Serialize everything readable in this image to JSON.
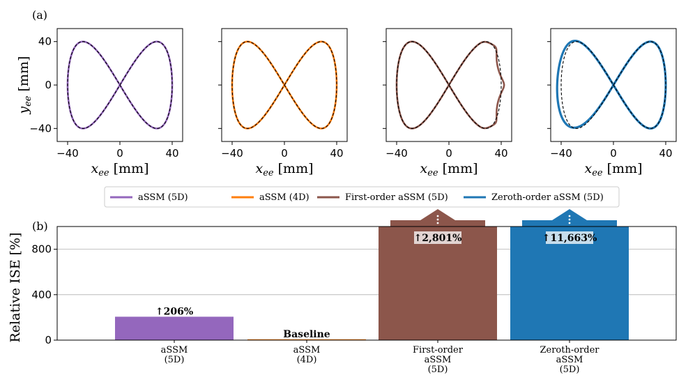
{
  "panel_labels": {
    "a": "(a)",
    "b": "(b)"
  },
  "chart_data": [
    {
      "type": "line",
      "panel": "(a)",
      "subplots": [
        {
          "series_name": "aSSM (5D)",
          "color": "#9467bd",
          "deviation": "none"
        },
        {
          "series_name": "aSSM (4D)",
          "color": "#ff7f0e",
          "deviation": "none"
        },
        {
          "series_name": "First-order aSSM (5D)",
          "color": "#8c564b",
          "deviation": "oscillation near x=40"
        },
        {
          "series_name": "Zeroth-order aSSM (5D)",
          "color": "#1f77b4",
          "deviation": "offset near x=-40"
        }
      ],
      "reference": {
        "style": "black dashed",
        "shape": "figure-eight",
        "x_amplitude": 40,
        "y_amplitude": 40
      },
      "xlabel": "x_ee [mm]",
      "ylabel": "y_ee [mm]",
      "xlim": [
        -48,
        48
      ],
      "ylim": [
        -52,
        52
      ],
      "xticks": [
        -40,
        0,
        40
      ],
      "yticks": [
        -40,
        0,
        40
      ],
      "xtick_labels": [
        "−40",
        "0",
        "40"
      ],
      "ytick_labels": [
        "−40",
        "0",
        "40"
      ]
    },
    {
      "type": "bar",
      "panel": "(b)",
      "categories": [
        [
          "aSSM",
          "(5D)"
        ],
        [
          "aSSM",
          "(4D)"
        ],
        [
          "First-order",
          "aSSM",
          "(5D)"
        ],
        [
          "Zeroth-order",
          "aSSM",
          "(5D)"
        ]
      ],
      "values": [
        206,
        0,
        2801,
        11663
      ],
      "colors": [
        "#9467bd",
        "#ff7f0e",
        "#8c564b",
        "#1f77b4"
      ],
      "bar_labels": [
        "↑206%",
        "Baseline",
        "↑2,801%",
        "↑11,663%"
      ],
      "truncated": [
        false,
        false,
        true,
        true
      ],
      "ylabel": "Relative ISE [%]",
      "ylim": [
        0,
        1000
      ],
      "yticks": [
        0,
        400,
        800
      ],
      "grid": "horizontal"
    }
  ],
  "legend": {
    "placement": "between panels, centered",
    "items": [
      {
        "label": "aSSM (5D)",
        "color": "#9467bd"
      },
      {
        "label": "aSSM (4D)",
        "color": "#ff7f0e"
      },
      {
        "label": "First-order aSSM (5D)",
        "color": "#8c564b"
      },
      {
        "label": "Zeroth-order aSSM (5D)",
        "color": "#1f77b4"
      }
    ]
  }
}
